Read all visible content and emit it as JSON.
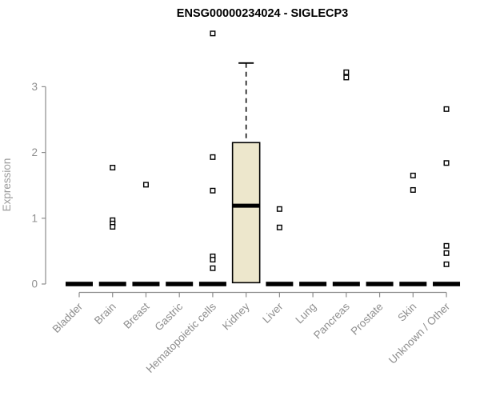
{
  "figure": {
    "title": "ENSG00000234024 - SIGLECP3"
  },
  "colors": {
    "axis": "#8c8c8c",
    "axis_text": "#8e8e8e",
    "y_label_text": "#9b9b9b",
    "box_fill": "#EDE7CC",
    "box_border": "#000000",
    "collapsed_box": "#000000",
    "outlier_fill": "#ffffff",
    "outlier_border": "#000000",
    "title_text": "#000000"
  },
  "chart_data": {
    "type": "boxplot",
    "title": "ENSG00000234024 - SIGLECP3",
    "xlabel": "",
    "ylabel": "Expression",
    "ylim": [
      0,
      3.4
    ],
    "yticks": [
      0,
      1,
      2,
      3
    ],
    "grid": false,
    "legend": false,
    "categories": [
      "Bladder",
      "Brain",
      "Breast",
      "Gastric",
      "Hematopoietic cells",
      "Kidney",
      "Liver",
      "Lung",
      "Pancreas",
      "Prostate",
      "Skin",
      "Unknown / Other"
    ],
    "boxes": [
      {
        "category": "Bladder",
        "q1": 0,
        "median": 0,
        "q3": 0,
        "whisker_low": 0,
        "whisker_high": 0,
        "outliers": []
      },
      {
        "category": "Brain",
        "q1": 0,
        "median": 0,
        "q3": 0,
        "whisker_low": 0,
        "whisker_high": 0,
        "outliers": [
          1.77,
          0.97,
          0.92,
          0.87
        ]
      },
      {
        "category": "Breast",
        "q1": 0,
        "median": 0,
        "q3": 0,
        "whisker_low": 0,
        "whisker_high": 0,
        "outliers": [
          1.51
        ]
      },
      {
        "category": "Gastric",
        "q1": 0,
        "median": 0,
        "q3": 0,
        "whisker_low": 0,
        "whisker_high": 0,
        "outliers": []
      },
      {
        "category": "Hematopoietic cells",
        "q1": 0,
        "median": 0,
        "q3": 0,
        "whisker_low": 0,
        "whisker_high": 0,
        "outliers": [
          3.81,
          1.93,
          1.42,
          0.42,
          0.37,
          0.24
        ]
      },
      {
        "category": "Kidney",
        "q1": 0.02,
        "median": 1.19,
        "q3": 2.15,
        "whisker_low": 0.02,
        "whisker_high": 3.36,
        "outliers": []
      },
      {
        "category": "Liver",
        "q1": 0,
        "median": 0,
        "q3": 0,
        "whisker_low": 0,
        "whisker_high": 0,
        "outliers": [
          1.14,
          0.86
        ]
      },
      {
        "category": "Lung",
        "q1": 0,
        "median": 0,
        "q3": 0,
        "whisker_low": 0,
        "whisker_high": 0,
        "outliers": []
      },
      {
        "category": "Pancreas",
        "q1": 0,
        "median": 0,
        "q3": 0,
        "whisker_low": 0,
        "whisker_high": 0,
        "outliers": [
          3.22,
          3.14
        ]
      },
      {
        "category": "Prostate",
        "q1": 0,
        "median": 0,
        "q3": 0,
        "whisker_low": 0,
        "whisker_high": 0,
        "outliers": []
      },
      {
        "category": "Skin",
        "q1": 0,
        "median": 0,
        "q3": 0,
        "whisker_low": 0,
        "whisker_high": 0,
        "outliers": [
          1.65,
          1.43
        ]
      },
      {
        "category": "Unknown / Other",
        "q1": 0,
        "median": 0,
        "q3": 0,
        "whisker_low": 0,
        "whisker_high": 0,
        "outliers": [
          2.66,
          1.84,
          0.58,
          0.47,
          0.3
        ]
      }
    ]
  }
}
